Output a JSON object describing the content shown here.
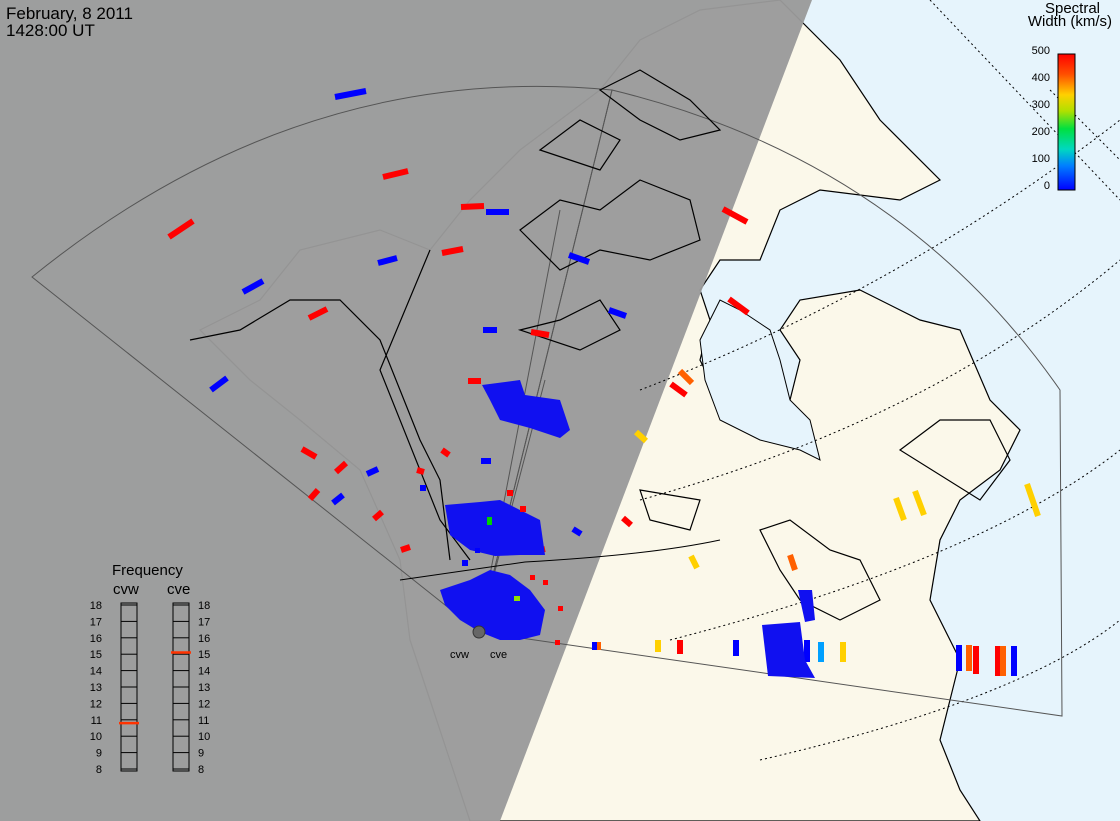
{
  "header": {
    "date": "February, 8 2011",
    "time": "1428:00 UT"
  },
  "colorbar": {
    "title_line1": "Spectral",
    "title_line2": "Width (km/s)",
    "ticks": [
      "500",
      "400",
      "300",
      "200",
      "100",
      "0"
    ]
  },
  "frequency": {
    "title": "Frequency",
    "left_label": "cvw",
    "right_label": "cve",
    "levels": [
      "18",
      "17",
      "16",
      "15",
      "14",
      "13",
      "12",
      "11",
      "10",
      "9",
      "8"
    ],
    "cvw_value": 10.8,
    "cve_value": 15.1,
    "marker_color": "#ff3300"
  },
  "radars": [
    {
      "id": "cvw",
      "label": "cvw"
    },
    {
      "id": "cve",
      "label": "cve"
    }
  ],
  "colors": {
    "night": "#9a9a9a",
    "land": "#fbf8ea",
    "ocean": "#e6f4fc",
    "scale": [
      "#0000ff",
      "#00bfff",
      "#00e040",
      "#ffd000",
      "#ff6000",
      "#ff0000"
    ]
  }
}
